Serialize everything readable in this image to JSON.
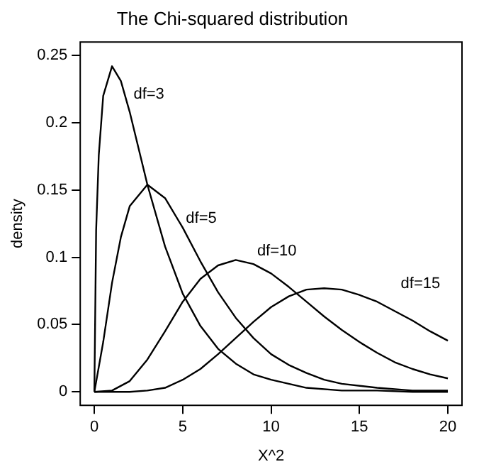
{
  "chart_data": {
    "type": "line",
    "title": "The Chi-squared distribution",
    "xlabel": "X^2",
    "ylabel": "density",
    "xlim": [
      -0.8,
      20.8
    ],
    "xticks": [
      0,
      5,
      10,
      15,
      20
    ],
    "ylim": [
      -0.01,
      0.26
    ],
    "yticks": [
      0,
      0.05,
      0.1,
      0.15,
      0.2,
      0.25
    ],
    "grid": false,
    "legend": false,
    "marker": "none",
    "line_style": "solid",
    "series": [
      {
        "color": "#000000",
        "x": [
          0,
          0.1,
          0.25,
          0.5,
          1,
          1.5,
          2,
          3,
          4,
          5,
          6,
          7,
          8,
          9,
          10,
          12,
          14,
          16,
          18,
          20
        ],
        "values": [
          0,
          0.12,
          0.176,
          0.22,
          0.242,
          0.231,
          0.208,
          0.154,
          0.108,
          0.073,
          0.049,
          0.032,
          0.021,
          0.013,
          0.009,
          0.003,
          0.001,
          0.001,
          0,
          0
        ]
      },
      {
        "color": "#000000",
        "x": [
          0,
          0.5,
          1,
          1.5,
          2,
          3,
          4,
          5,
          6,
          7,
          8,
          9,
          10,
          11,
          12,
          13,
          14,
          16,
          18,
          20
        ],
        "values": [
          0,
          0.037,
          0.081,
          0.115,
          0.138,
          0.154,
          0.144,
          0.122,
          0.097,
          0.074,
          0.055,
          0.04,
          0.028,
          0.02,
          0.014,
          0.009,
          0.006,
          0.003,
          0.001,
          0.001
        ]
      },
      {
        "color": "#000000",
        "x": [
          0,
          1,
          2,
          3,
          4,
          5,
          6,
          7,
          8,
          9,
          10,
          11,
          12,
          13,
          14,
          15,
          16,
          17,
          18,
          19,
          20
        ],
        "values": [
          0,
          0.001,
          0.008,
          0.024,
          0.045,
          0.067,
          0.084,
          0.094,
          0.098,
          0.095,
          0.088,
          0.078,
          0.067,
          0.056,
          0.046,
          0.037,
          0.029,
          0.022,
          0.017,
          0.013,
          0.01
        ]
      },
      {
        "color": "#000000",
        "x": [
          0,
          1,
          2,
          3,
          4,
          5,
          6,
          7,
          8,
          9,
          10,
          11,
          12,
          13,
          14,
          15,
          16,
          17,
          18,
          19,
          20
        ],
        "values": [
          0,
          0,
          0,
          0.001,
          0.003,
          0.009,
          0.017,
          0.028,
          0.04,
          0.052,
          0.063,
          0.071,
          0.076,
          0.077,
          0.076,
          0.072,
          0.067,
          0.06,
          0.053,
          0.045,
          0.038
        ]
      }
    ],
    "annotations": [
      "df=3",
      "df=5",
      "df=10",
      "df=15"
    ]
  }
}
